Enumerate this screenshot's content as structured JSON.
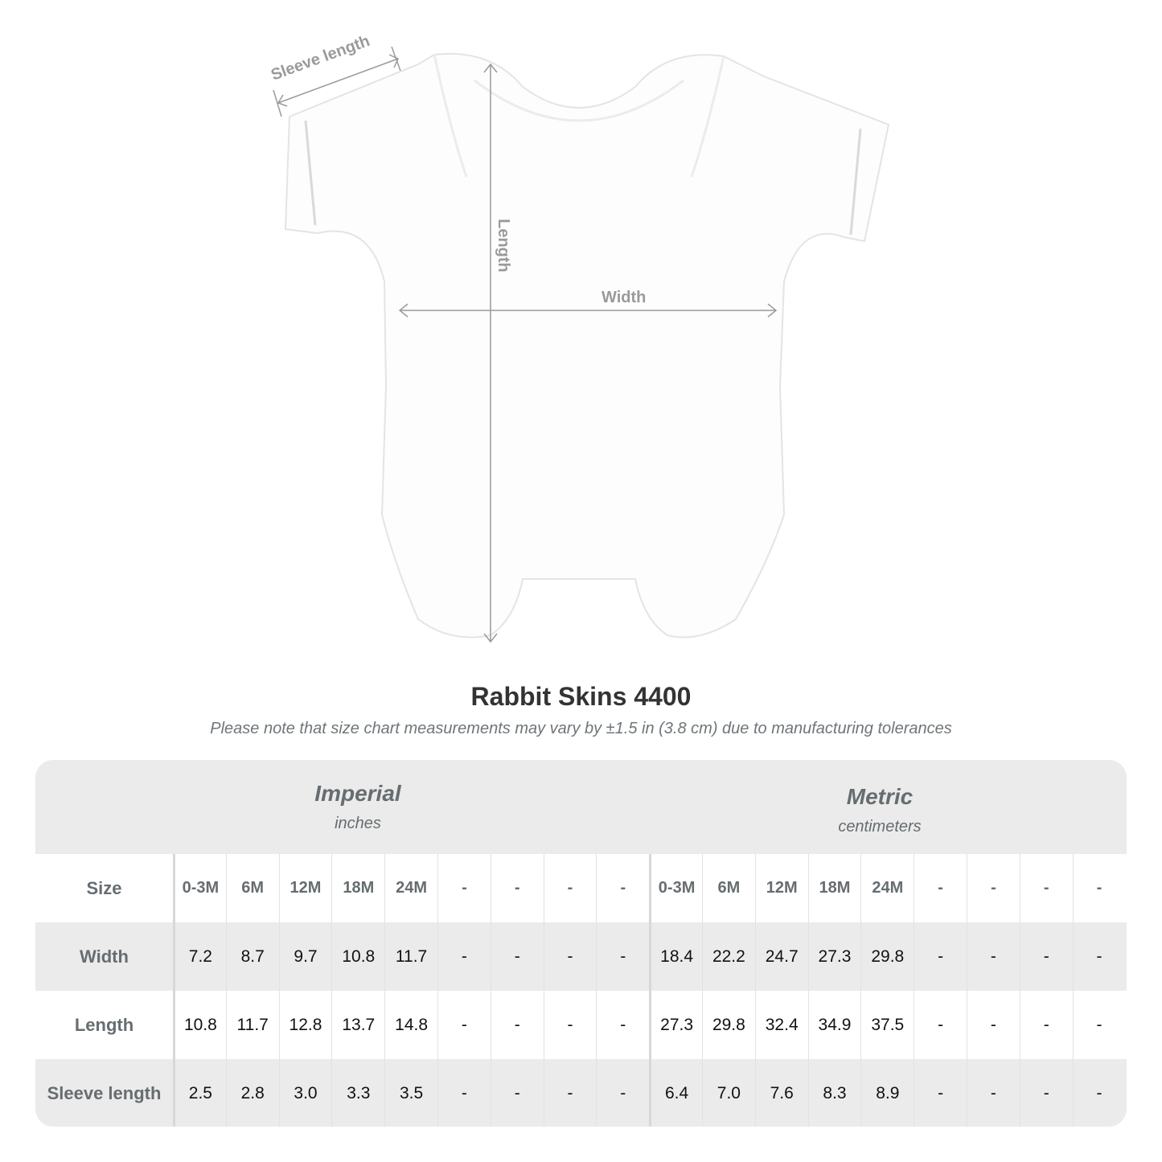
{
  "diagram": {
    "sleeve_label": "Sleeve length",
    "length_label": "Length",
    "width_label": "Width",
    "arrow_color": "#9a9a9a"
  },
  "title": "Rabbit Skins 4400",
  "note": "Please note that size chart measurements may vary by ±1.5 in (3.8 cm) due to manufacturing tolerances",
  "table": {
    "imperial": {
      "name": "Imperial",
      "unit": "inches"
    },
    "metric": {
      "name": "Metric",
      "unit": "centimeters"
    },
    "rows": [
      {
        "label": "Size",
        "imperial": [
          "0-3M",
          "6M",
          "12M",
          "18M",
          "24M",
          "-",
          "-",
          "-",
          "-"
        ],
        "metric": [
          "0-3M",
          "6M",
          "12M",
          "18M",
          "24M",
          "-",
          "-",
          "-",
          "-"
        ]
      },
      {
        "label": "Width",
        "imperial": [
          "7.2",
          "8.7",
          "9.7",
          "10.8",
          "11.7",
          "-",
          "-",
          "-",
          "-"
        ],
        "metric": [
          "18.4",
          "22.2",
          "24.7",
          "27.3",
          "29.8",
          "-",
          "-",
          "-",
          "-"
        ]
      },
      {
        "label": "Length",
        "imperial": [
          "10.8",
          "11.7",
          "12.8",
          "13.7",
          "14.8",
          "-",
          "-",
          "-",
          "-"
        ],
        "metric": [
          "27.3",
          "29.8",
          "32.4",
          "34.9",
          "37.5",
          "-",
          "-",
          "-",
          "-"
        ]
      },
      {
        "label": "Sleeve length",
        "imperial": [
          "2.5",
          "2.8",
          "3.0",
          "3.3",
          "3.5",
          "-",
          "-",
          "-",
          "-"
        ],
        "metric": [
          "6.4",
          "7.0",
          "7.6",
          "8.3",
          "8.9",
          "-",
          "-",
          "-",
          "-"
        ]
      }
    ]
  }
}
